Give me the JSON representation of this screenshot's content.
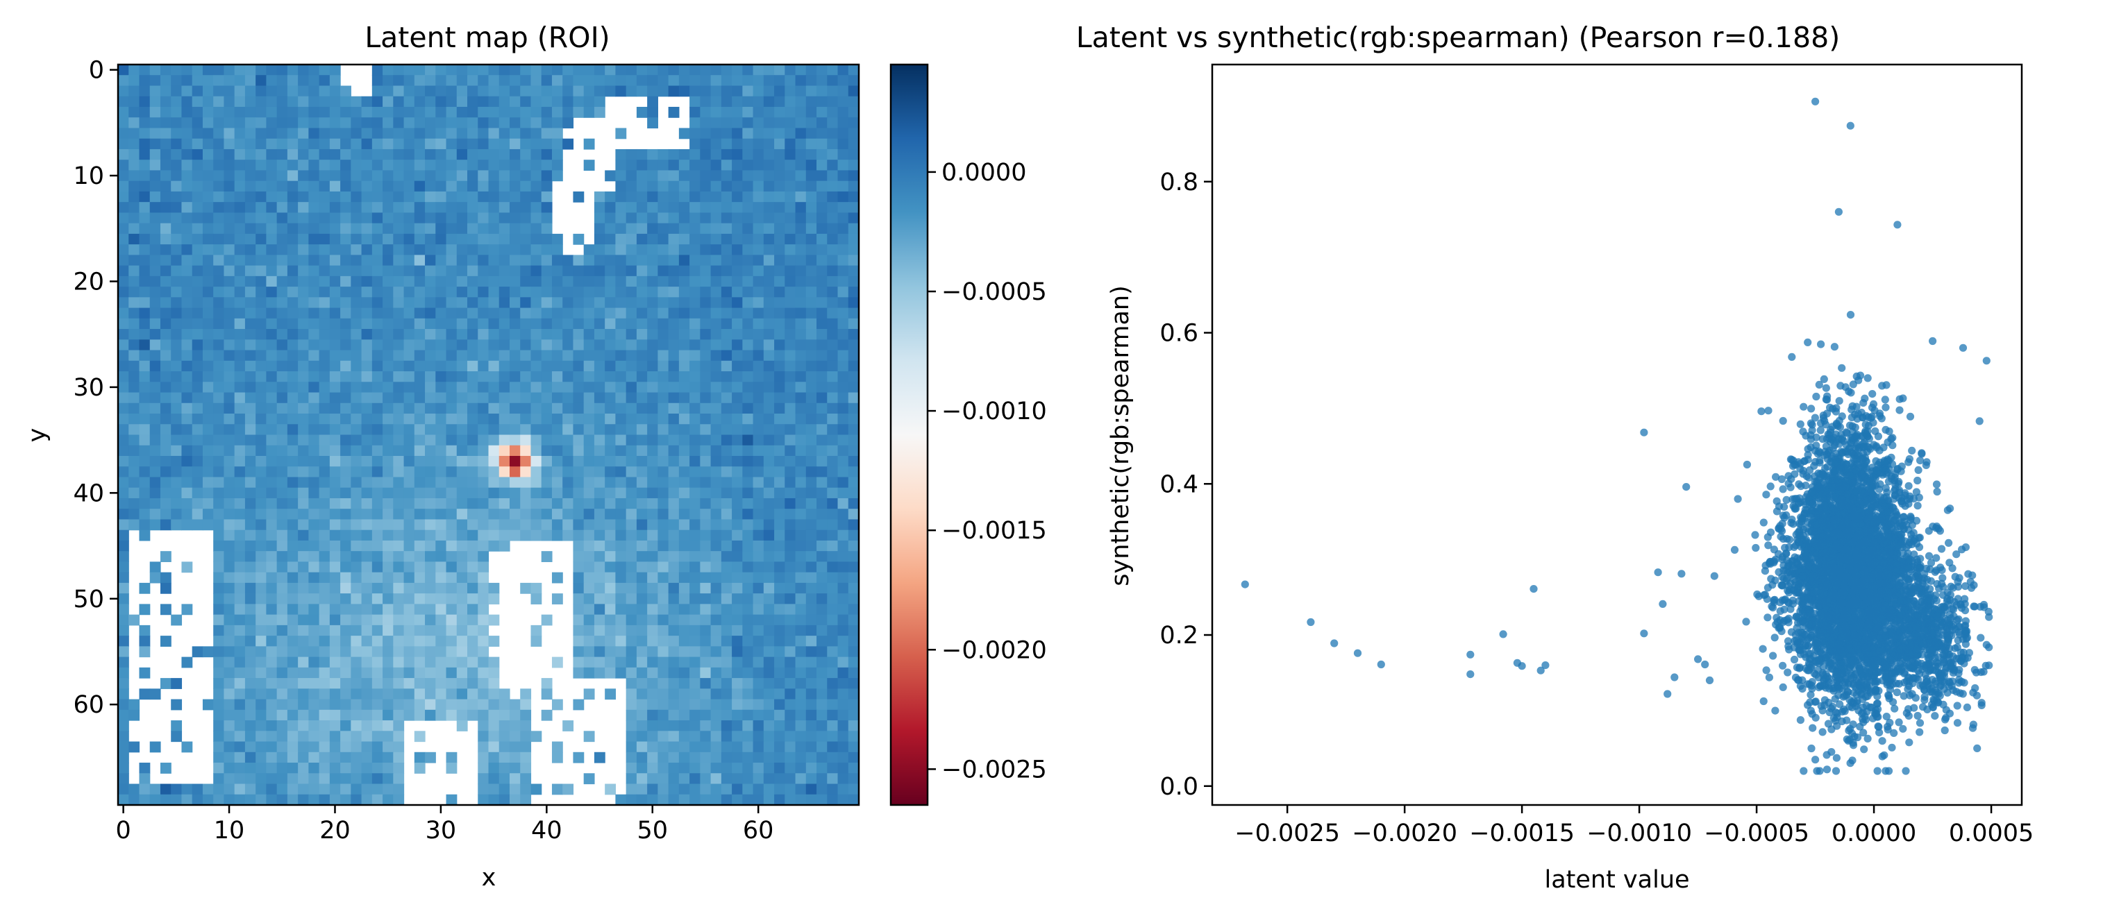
{
  "chart_data": [
    {
      "type": "heatmap",
      "title": "Latent map (ROI)",
      "xlabel": "x",
      "ylabel": "y",
      "shape": [
        70,
        70
      ],
      "x_ticks": [
        0,
        10,
        20,
        30,
        40,
        50,
        60
      ],
      "y_ticks": [
        0,
        10,
        20,
        30,
        40,
        50,
        60
      ],
      "y_axis_inverted": true,
      "colormap": "RdBu",
      "colormap_colors": [
        "#67001f",
        "#b2182b",
        "#d6604d",
        "#f4a582",
        "#fddbc7",
        "#f7f7f7",
        "#d1e5f0",
        "#92c5de",
        "#4393c3",
        "#2166ac",
        "#053061"
      ],
      "vmin": -0.00265,
      "vmax": 0.00045,
      "colorbar_ticks": [
        0.0,
        -0.0005,
        -0.001,
        -0.0015,
        -0.002,
        -0.0025
      ],
      "colorbar_labels": [
        "0.0000",
        "−0.0005",
        "−0.0010",
        "−0.0015",
        "−0.0020",
        "−0.0025"
      ],
      "background_mean": -0.0001,
      "lighter_region": {
        "center_x": 33,
        "center_y": 55,
        "radius_x": 26,
        "radius_y": 20,
        "mean": -0.0004
      },
      "red_hotspot": {
        "x": [
          34,
          39
        ],
        "y": [
          34,
          39
        ],
        "min": -0.0026
      },
      "masked_white_regions": [
        {
          "x": [
            21,
            23
          ],
          "y": [
            0,
            2
          ]
        },
        {
          "x": [
            41,
            44
          ],
          "y": [
            11,
            17
          ]
        },
        {
          "x": [
            42,
            46
          ],
          "y": [
            5,
            11
          ]
        },
        {
          "x": [
            46,
            53
          ],
          "y": [
            3,
            7
          ]
        },
        {
          "x": [
            1,
            8
          ],
          "y": [
            44,
            67
          ]
        },
        {
          "x": [
            35,
            42
          ],
          "y": [
            45,
            59
          ]
        },
        {
          "x": [
            39,
            47
          ],
          "y": [
            58,
            69
          ]
        },
        {
          "x": [
            27,
            33
          ],
          "y": [
            62,
            69
          ]
        }
      ]
    },
    {
      "type": "scatter",
      "title": "Latent vs synthetic(rgb:spearman) (Pearson r=0.188)",
      "xlabel": "latent value",
      "ylabel": "synthetic(rgb:spearman)",
      "xlim": [
        -0.00282,
        0.00063
      ],
      "ylim": [
        -0.025,
        0.955
      ],
      "x_ticks": [
        -0.0025,
        -0.002,
        -0.0015,
        -0.001,
        -0.0005,
        0.0,
        0.0005
      ],
      "x_tick_labels": [
        "−0.0025",
        "−0.0020",
        "−0.0015",
        "−0.0010",
        "−0.0005",
        "0.0000",
        "0.0005"
      ],
      "y_ticks": [
        0.0,
        0.2,
        0.4,
        0.6,
        0.8
      ],
      "y_tick_labels": [
        "0.0",
        "0.2",
        "0.4",
        "0.6",
        "0.8"
      ],
      "color": "#1f77b4",
      "n_points": 4900,
      "outliers": [
        [
          -0.00268,
          0.267
        ],
        [
          -0.0024,
          0.217
        ],
        [
          -0.0023,
          0.189
        ],
        [
          -0.0022,
          0.176
        ],
        [
          -0.0021,
          0.161
        ],
        [
          -0.00172,
          0.174
        ],
        [
          -0.00172,
          0.148
        ],
        [
          -0.00158,
          0.201
        ],
        [
          -0.00152,
          0.163
        ],
        [
          -0.0015,
          0.159
        ],
        [
          -0.00145,
          0.261
        ],
        [
          -0.00142,
          0.153
        ],
        [
          -0.0014,
          0.16
        ],
        [
          -0.00098,
          0.468
        ],
        [
          -0.00098,
          0.202
        ],
        [
          -0.00092,
          0.283
        ],
        [
          -0.0009,
          0.241
        ],
        [
          -0.00088,
          0.122
        ],
        [
          -0.00085,
          0.144
        ],
        [
          -0.00082,
          0.281
        ],
        [
          -0.0008,
          0.396
        ],
        [
          -0.00075,
          0.168
        ],
        [
          -0.00072,
          0.161
        ],
        [
          -0.0007,
          0.14
        ],
        [
          -0.00068,
          0.278
        ],
        [
          -0.00058,
          0.38
        ],
        [
          -0.00048,
          0.496
        ],
        [
          -0.00045,
          0.497
        ],
        [
          -0.00035,
          0.568
        ],
        [
          -0.0003,
          0.502
        ],
        [
          -0.0002,
          0.493
        ],
        [
          -0.00025,
          0.906
        ],
        [
          -0.0001,
          0.874
        ],
        [
          -0.00015,
          0.76
        ],
        [
          0.0001,
          0.743
        ],
        [
          0.00025,
          0.589
        ],
        [
          0.00045,
          0.483
        ],
        [
          0.00038,
          0.58
        ],
        [
          0.00048,
          0.563
        ],
        [
          -0.0002,
          0.022
        ],
        [
          -0.00025,
          0.035
        ],
        [
          0.00048,
          0.187
        ]
      ]
    }
  ]
}
